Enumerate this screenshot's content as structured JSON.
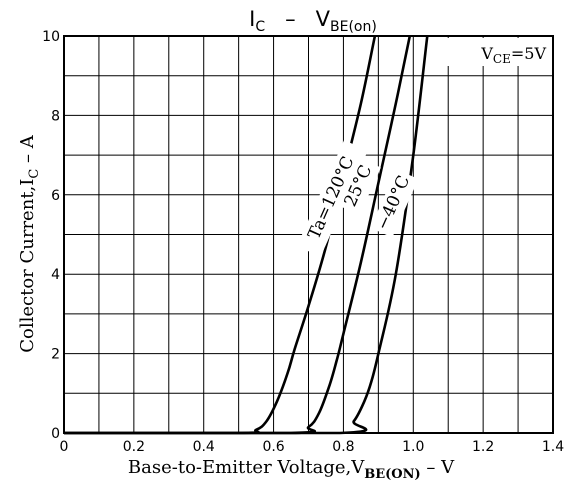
{
  "chart_data": {
    "type": "line",
    "title": {
      "main": "I",
      "main_sub": "C",
      "sep": "–",
      "second": "V",
      "second_sub": "BE(on)"
    },
    "xlabel": {
      "prefix": "Base-to-Emitter Voltage,V",
      "sub": "BE(ON)",
      "suffix": " – V"
    },
    "ylabel": {
      "prefix": "Collector Current,I",
      "sub": "C",
      "suffix": " – A"
    },
    "condition": {
      "prefix": "V",
      "sub": "CE",
      "suffix": "=5V"
    },
    "xlim": [
      0,
      1.4
    ],
    "ylim": [
      0,
      10
    ],
    "x_ticks": [
      0,
      0.2,
      0.4,
      0.6,
      0.8,
      1.0,
      1.2,
      1.4
    ],
    "x_tick_labels": [
      "0",
      "0.2",
      "0.4",
      "0.6",
      "0.8",
      "1.0",
      "1.2",
      "1.4"
    ],
    "y_ticks": [
      0,
      2,
      4,
      6,
      8,
      10
    ],
    "y_tick_labels": [
      "0",
      "2",
      "4",
      "6",
      "8",
      "10"
    ],
    "grid": true,
    "series": [
      {
        "name": "Ta=120°C",
        "x": [
          0,
          0.5,
          0.55,
          0.58,
          0.61,
          0.64,
          0.66,
          0.7,
          0.75,
          0.8,
          0.85,
          0.89
        ],
        "y": [
          0,
          0,
          0.08,
          0.3,
          0.8,
          1.5,
          2.1,
          3.2,
          4.7,
          6.5,
          8.3,
          10
        ]
      },
      {
        "name": "25°C",
        "x": [
          0,
          0.65,
          0.7,
          0.73,
          0.76,
          0.78,
          0.8,
          0.85,
          0.9,
          0.95,
          0.99
        ],
        "y": [
          0,
          0,
          0.15,
          0.5,
          1.2,
          1.8,
          2.5,
          4.3,
          6.3,
          8.3,
          10
        ]
      },
      {
        "name": "−40°C",
        "x": [
          0,
          0.79,
          0.83,
          0.86,
          0.88,
          0.9,
          0.95,
          1.0,
          1.04
        ],
        "y": [
          0,
          0,
          0.3,
          0.8,
          1.3,
          2.0,
          4.0,
          7.0,
          10
        ]
      }
    ]
  }
}
